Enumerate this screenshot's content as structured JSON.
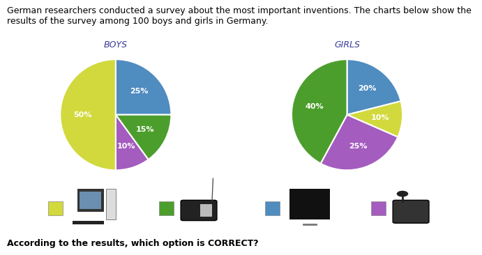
{
  "intro": "German researchers conducted a survey about the most important inventions. The charts below show the results of the survey among 100 boys and girls in Germany.",
  "question": "According to the results, which option is CORRECT?",
  "chart_data": [
    {
      "type": "pie",
      "title": "BOYS",
      "values": [
        25,
        15,
        10,
        50
      ],
      "value_labels": [
        "25%",
        "15%",
        "10%",
        "50%"
      ],
      "colors": [
        "#4f8cc0",
        "#4c9e2c",
        "#a45cbf",
        "#d2d93c"
      ],
      "data_labels": true
    },
    {
      "type": "pie",
      "title": "GIRLS",
      "values": [
        20,
        10,
        25,
        40
      ],
      "value_labels": [
        "20%",
        "10%",
        "25%",
        "40%"
      ],
      "colors": [
        "#4f8cc0",
        "#d2d93c",
        "#a45cbf",
        "#4c9e2c"
      ],
      "data_labels": true
    }
  ]
}
